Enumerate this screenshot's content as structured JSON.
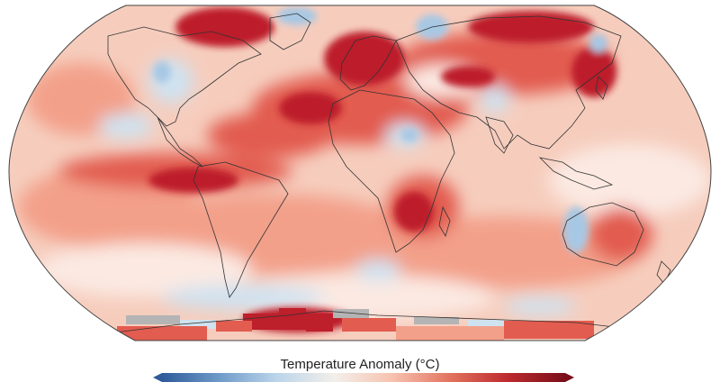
{
  "legend": {
    "title": "Temperature Anomaly (°C)",
    "colors": [
      "#2f5b9a",
      "#6f9bc9",
      "#bcd5ea",
      "#f3efea",
      "#f7c2b0",
      "#e2735e",
      "#bd2a2e",
      "#7a0f1a"
    ]
  },
  "map": {
    "projection": "Robinson",
    "ocean_base_color": "#f6cdbd",
    "coastline_color": "#333333",
    "outline_color": "#444444",
    "no_data_color": "#b4b4b4",
    "anomaly_colors": {
      "strong_warm": "#bd1f2b",
      "warm": "#e25c4f",
      "mild_warm": "#f3a08a",
      "neutral": "#fbe9e2",
      "cool": "#cfe2f0",
      "cold": "#a7c8e4"
    }
  }
}
